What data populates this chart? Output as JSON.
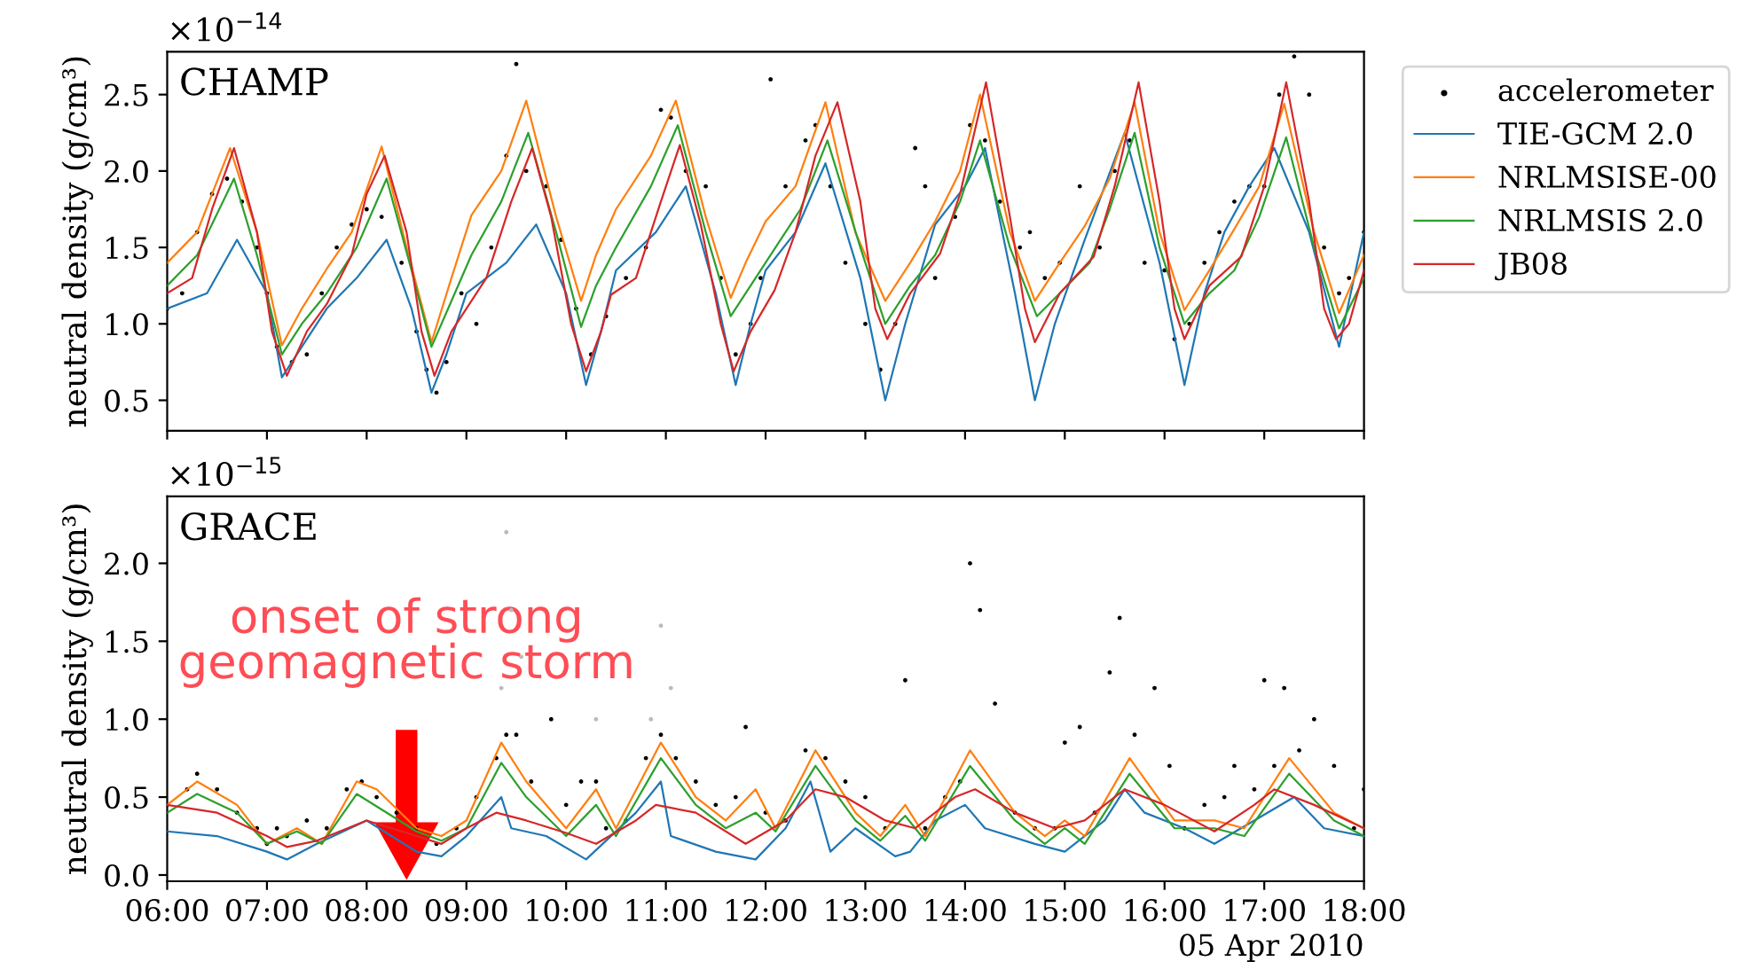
{
  "chart_data": [
    {
      "type": "line",
      "ylabel": "neutral density (g/cm³)",
      "annotations": [
        "CHAMP",
        "×10$^{−14}$"
      ],
      "xlim": [
        6,
        18
      ],
      "xticks": [
        {
          "value": 6,
          "label": null
        },
        {
          "value": 7,
          "label": null
        },
        {
          "value": 8,
          "label": null
        },
        {
          "value": 9,
          "label": null
        },
        {
          "value": 10,
          "label": null
        },
        {
          "value": 11,
          "label": null
        },
        {
          "value": 12,
          "label": null
        },
        {
          "value": 13,
          "label": null
        },
        {
          "value": 14,
          "label": null
        },
        {
          "value": 15,
          "label": null
        },
        {
          "value": 16,
          "label": null
        },
        {
          "value": 17,
          "label": null
        },
        {
          "value": 18,
          "label": null
        }
      ],
      "ylim": [
        0.3,
        2.78
      ],
      "yticks": [
        {
          "value": 0.5,
          "label": "0.5"
        },
        {
          "value": 1.0,
          "label": "1.0"
        },
        {
          "value": 1.5,
          "label": "1.5"
        },
        {
          "value": 2.0,
          "label": "2.0"
        },
        {
          "value": 2.5,
          "label": "2.5"
        }
      ],
      "tick_labels": "y",
      "grid": false,
      "legend": "right",
      "marker": "none",
      "line_style": "solid",
      "series": [
        {
          "name": "accelerometer",
          "type": "scatter",
          "marker": "circle",
          "color": "#000000",
          "x": [
            6.0,
            6.15,
            6.3,
            6.45,
            6.6,
            6.75,
            6.9,
            7.0,
            7.1,
            7.25,
            7.4,
            7.55,
            7.7,
            7.85,
            8.0,
            8.15,
            8.35,
            8.5,
            8.6,
            8.7,
            8.8,
            8.95,
            9.1,
            9.25,
            9.4,
            9.5,
            9.6,
            9.8,
            9.95,
            10.1,
            10.25,
            10.4,
            10.6,
            10.8,
            10.95,
            11.05,
            11.2,
            11.4,
            11.55,
            11.7,
            11.85,
            11.95,
            12.05,
            12.2,
            12.4,
            12.5,
            12.65,
            12.8,
            13.0,
            13.15,
            13.3,
            13.5,
            13.6,
            13.7,
            13.9,
            14.05,
            14.2,
            14.35,
            14.55,
            14.65,
            14.8,
            14.95,
            15.15,
            15.35,
            15.5,
            15.65,
            15.8,
            16.0,
            16.1,
            16.25,
            16.4,
            16.55,
            16.7,
            16.85,
            17.0,
            17.15,
            17.3,
            17.45,
            17.6,
            17.75,
            17.85,
            18.0
          ],
          "values": [
            1.1,
            1.2,
            1.6,
            1.85,
            1.95,
            1.8,
            1.5,
            1.2,
            0.85,
            0.75,
            0.8,
            1.2,
            1.5,
            1.65,
            1.75,
            1.7,
            1.4,
            0.95,
            0.7,
            0.55,
            0.75,
            1.2,
            1.0,
            1.5,
            2.1,
            2.7,
            2.0,
            1.9,
            1.55,
            1.1,
            0.8,
            1.05,
            1.3,
            1.5,
            2.4,
            2.35,
            2.0,
            1.9,
            1.3,
            0.8,
            1.0,
            1.3,
            2.6,
            1.9,
            2.2,
            2.3,
            1.9,
            1.4,
            1.0,
            0.7,
            1.0,
            2.15,
            1.9,
            1.3,
            1.7,
            2.3,
            2.2,
            1.8,
            1.5,
            1.6,
            1.3,
            1.4,
            1.9,
            1.5,
            2.0,
            2.2,
            1.4,
            1.35,
            0.9,
            1.0,
            1.4,
            1.6,
            1.8,
            1.9,
            1.9,
            2.5,
            2.75,
            2.5,
            1.5,
            1.2,
            1.3,
            1.6
          ]
        },
        {
          "name": "TIE-GCM 2.0",
          "type": "line",
          "color": "#1f77b4",
          "x": [
            6.0,
            6.4,
            6.7,
            7.0,
            7.15,
            7.35,
            7.6,
            7.9,
            8.2,
            8.45,
            8.65,
            8.8,
            9.0,
            9.4,
            9.7,
            10.0,
            10.2,
            10.35,
            10.5,
            10.9,
            11.2,
            11.5,
            11.7,
            11.85,
            12.0,
            12.3,
            12.6,
            12.95,
            13.2,
            13.4,
            13.7,
            14.0,
            14.2,
            14.5,
            14.7,
            14.9,
            15.2,
            15.4,
            15.6,
            15.95,
            16.2,
            16.4,
            16.6,
            16.85,
            17.1,
            17.45,
            17.75,
            18.0
          ],
          "values": [
            1.1,
            1.2,
            1.55,
            1.2,
            0.65,
            0.85,
            1.1,
            1.3,
            1.55,
            1.1,
            0.55,
            0.8,
            1.2,
            1.4,
            1.65,
            1.2,
            0.6,
            0.95,
            1.35,
            1.6,
            1.9,
            1.2,
            0.6,
            1.0,
            1.35,
            1.6,
            2.05,
            1.3,
            0.5,
            1.0,
            1.65,
            1.9,
            2.15,
            1.2,
            0.5,
            1.0,
            1.55,
            1.9,
            2.25,
            1.4,
            0.6,
            1.2,
            1.6,
            1.9,
            2.15,
            1.6,
            0.85,
            1.6
          ]
        },
        {
          "name": "NRLMSISE-00",
          "type": "line",
          "color": "#ff7f0e",
          "x": [
            6.0,
            6.3,
            6.63,
            6.9,
            7.15,
            7.35,
            7.6,
            7.85,
            8.15,
            8.4,
            8.65,
            8.85,
            9.05,
            9.35,
            9.6,
            9.9,
            10.15,
            10.3,
            10.5,
            10.85,
            11.1,
            11.4,
            11.65,
            11.8,
            12.0,
            12.3,
            12.6,
            12.9,
            13.2,
            13.45,
            13.7,
            13.95,
            14.15,
            14.45,
            14.7,
            14.95,
            15.2,
            15.45,
            15.7,
            15.95,
            16.2,
            16.45,
            16.7,
            16.95,
            17.2,
            17.5,
            17.75,
            18.0
          ],
          "values": [
            1.4,
            1.6,
            2.15,
            1.6,
            0.86,
            1.1,
            1.36,
            1.6,
            2.16,
            1.5,
            0.88,
            1.3,
            1.71,
            2.0,
            2.46,
            1.7,
            1.15,
            1.45,
            1.75,
            2.1,
            2.46,
            1.7,
            1.17,
            1.4,
            1.67,
            1.9,
            2.45,
            1.6,
            1.15,
            1.4,
            1.67,
            2.0,
            2.5,
            1.6,
            1.15,
            1.4,
            1.64,
            1.95,
            2.45,
            1.6,
            1.09,
            1.35,
            1.62,
            1.9,
            2.44,
            1.6,
            1.07,
            1.45
          ]
        },
        {
          "name": "NRLMSIS 2.0",
          "type": "line",
          "color": "#2ca02c",
          "x": [
            6.0,
            6.3,
            6.67,
            6.9,
            7.15,
            7.35,
            7.6,
            7.9,
            8.2,
            8.45,
            8.65,
            8.85,
            9.05,
            9.35,
            9.62,
            9.9,
            10.15,
            10.3,
            10.5,
            10.85,
            11.12,
            11.4,
            11.65,
            11.85,
            12.05,
            12.35,
            12.62,
            12.95,
            13.2,
            13.45,
            13.7,
            13.95,
            14.15,
            14.45,
            14.72,
            14.95,
            15.25,
            15.45,
            15.7,
            15.95,
            16.2,
            16.45,
            16.7,
            16.95,
            17.22,
            17.5,
            17.75,
            18.0
          ],
          "values": [
            1.25,
            1.45,
            1.95,
            1.45,
            0.8,
            1.0,
            1.2,
            1.5,
            1.95,
            1.35,
            0.85,
            1.15,
            1.45,
            1.8,
            2.25,
            1.6,
            0.98,
            1.25,
            1.5,
            1.9,
            2.3,
            1.6,
            1.05,
            1.25,
            1.45,
            1.75,
            2.2,
            1.5,
            1.0,
            1.25,
            1.45,
            1.8,
            2.2,
            1.5,
            1.05,
            1.2,
            1.4,
            1.75,
            2.25,
            1.5,
            1.0,
            1.2,
            1.35,
            1.7,
            2.22,
            1.5,
            0.97,
            1.3
          ]
        },
        {
          "name": "JB08",
          "type": "line",
          "color": "#d62728",
          "x": [
            6.0,
            6.25,
            6.45,
            6.67,
            6.9,
            7.05,
            7.2,
            7.4,
            7.6,
            7.85,
            8.0,
            8.18,
            8.4,
            8.55,
            8.68,
            8.85,
            9.0,
            9.2,
            9.45,
            9.66,
            9.85,
            10.05,
            10.2,
            10.35,
            10.45,
            10.7,
            10.95,
            11.14,
            11.35,
            11.55,
            11.68,
            11.85,
            12.09,
            12.3,
            12.5,
            12.72,
            12.95,
            13.1,
            13.22,
            13.45,
            13.75,
            13.95,
            14.21,
            14.45,
            14.6,
            14.7,
            14.95,
            15.29,
            15.5,
            15.74,
            15.95,
            16.1,
            16.2,
            16.45,
            16.77,
            17.0,
            17.22,
            17.45,
            17.6,
            17.72,
            17.85,
            18.0
          ],
          "values": [
            1.2,
            1.3,
            1.75,
            2.15,
            1.6,
            0.95,
            0.66,
            0.95,
            1.13,
            1.45,
            1.85,
            2.1,
            1.6,
            0.95,
            0.66,
            0.95,
            1.1,
            1.3,
            1.8,
            2.15,
            1.7,
            1.0,
            0.69,
            0.95,
            1.19,
            1.3,
            1.8,
            2.17,
            1.65,
            1.0,
            0.69,
            0.95,
            1.22,
            1.6,
            2.1,
            2.45,
            1.8,
            1.1,
            0.9,
            1.2,
            1.46,
            1.85,
            2.58,
            1.7,
            1.1,
            0.88,
            1.2,
            1.44,
            1.9,
            2.58,
            1.8,
            1.1,
            0.9,
            1.25,
            1.44,
            1.9,
            2.58,
            1.8,
            1.1,
            0.9,
            1.0,
            1.35
          ]
        }
      ]
    },
    {
      "type": "line",
      "ylabel": "neutral density (g/cm³)",
      "annotations": [
        "GRACE",
        "×10$^{−15}$",
        "onset of strong\ngeomagnetic storm",
        "05 Apr 2010"
      ],
      "xlim": [
        6,
        18
      ],
      "xticks": [
        {
          "value": 6,
          "label": "06:00"
        },
        {
          "value": 7,
          "label": "07:00"
        },
        {
          "value": 8,
          "label": "08:00"
        },
        {
          "value": 9,
          "label": "09:00"
        },
        {
          "value": 10,
          "label": "10:00"
        },
        {
          "value": 11,
          "label": "11:00"
        },
        {
          "value": 12,
          "label": "12:00"
        },
        {
          "value": 13,
          "label": "13:00"
        },
        {
          "value": 14,
          "label": "14:00"
        },
        {
          "value": 15,
          "label": "15:00"
        },
        {
          "value": 16,
          "label": "16:00"
        },
        {
          "value": 17,
          "label": "17:00"
        },
        {
          "value": 18,
          "label": "18:00"
        }
      ],
      "ylim": [
        -0.04,
        2.43
      ],
      "yticks": [
        {
          "value": 0.0,
          "label": "0.0"
        },
        {
          "value": 0.5,
          "label": "0.5"
        },
        {
          "value": 1.0,
          "label": "1.0"
        },
        {
          "value": 1.5,
          "label": "1.5"
        },
        {
          "value": 2.0,
          "label": "2.0"
        }
      ],
      "grid": false,
      "legend": false,
      "marker": "none",
      "line_style": "solid",
      "series": [
        {
          "type": "scatter",
          "marker": "circle",
          "color": "#bbbbbb",
          "x": [
            9.35,
            9.4,
            9.45,
            9.55,
            10.3,
            10.85,
            10.95,
            11.05
          ],
          "values": [
            1.2,
            2.2,
            1.7,
            1.4,
            1.0,
            1.0,
            1.6,
            1.2
          ]
        },
        {
          "type": "scatter",
          "marker": "circle",
          "color": "#000000",
          "x": [
            6.0,
            6.2,
            6.3,
            6.5,
            6.7,
            6.9,
            7.0,
            7.1,
            7.2,
            7.4,
            7.6,
            7.8,
            7.95,
            8.1,
            8.3,
            8.5,
            8.7,
            8.9,
            9.1,
            9.3,
            9.4,
            9.5,
            9.65,
            9.85,
            10.0,
            10.15,
            10.3,
            10.4,
            10.6,
            10.8,
            10.95,
            11.1,
            11.3,
            11.5,
            11.7,
            11.8,
            12.0,
            12.2,
            12.4,
            12.6,
            12.8,
            13.0,
            13.2,
            13.4,
            13.6,
            13.8,
            13.95,
            14.05,
            14.15,
            14.3,
            14.5,
            14.7,
            14.9,
            15.0,
            15.15,
            15.3,
            15.45,
            15.55,
            15.7,
            15.9,
            16.05,
            16.2,
            16.4,
            16.6,
            16.7,
            16.9,
            17.0,
            17.1,
            17.2,
            17.35,
            17.5,
            17.7,
            17.9,
            18.0
          ],
          "values": [
            0.45,
            0.55,
            0.65,
            0.55,
            0.4,
            0.3,
            0.2,
            0.3,
            0.25,
            0.35,
            0.3,
            0.55,
            0.6,
            0.5,
            0.4,
            0.3,
            0.2,
            0.3,
            0.5,
            0.75,
            0.9,
            0.9,
            0.6,
            1.0,
            0.45,
            0.6,
            0.6,
            0.3,
            0.35,
            0.75,
            0.9,
            0.75,
            0.6,
            0.45,
            0.5,
            0.95,
            0.4,
            0.35,
            0.8,
            0.75,
            0.6,
            0.5,
            0.3,
            1.25,
            0.3,
            0.5,
            0.6,
            2.0,
            1.7,
            1.1,
            0.4,
            0.3,
            0.3,
            0.85,
            0.95,
            0.4,
            1.3,
            1.65,
            0.9,
            1.2,
            0.7,
            0.3,
            0.45,
            0.5,
            0.7,
            0.55,
            1.25,
            0.7,
            1.2,
            0.8,
            1.0,
            0.7,
            0.3,
            0.55
          ]
        },
        {
          "type": "line",
          "color": "#1f77b4",
          "x": [
            6.0,
            6.5,
            7.0,
            7.2,
            7.5,
            8.0,
            8.5,
            8.75,
            9.0,
            9.35,
            9.45,
            9.8,
            10.2,
            10.7,
            10.95,
            11.05,
            11.5,
            11.9,
            12.2,
            12.45,
            12.65,
            12.9,
            13.3,
            13.45,
            13.7,
            14.0,
            14.2,
            14.7,
            15.0,
            15.4,
            15.6,
            15.8,
            16.2,
            16.5,
            16.9,
            17.3,
            17.6,
            18.0
          ],
          "values": [
            0.28,
            0.25,
            0.15,
            0.1,
            0.2,
            0.35,
            0.15,
            0.12,
            0.25,
            0.5,
            0.3,
            0.25,
            0.1,
            0.4,
            0.6,
            0.25,
            0.15,
            0.1,
            0.3,
            0.6,
            0.15,
            0.3,
            0.12,
            0.15,
            0.35,
            0.45,
            0.3,
            0.2,
            0.15,
            0.35,
            0.55,
            0.4,
            0.3,
            0.2,
            0.35,
            0.5,
            0.3,
            0.25
          ]
        },
        {
          "type": "line",
          "color": "#ff7f0e",
          "x": [
            6.0,
            6.3,
            6.7,
            7.0,
            7.3,
            7.55,
            7.9,
            8.1,
            8.5,
            8.75,
            9.0,
            9.35,
            9.6,
            10.0,
            10.3,
            10.5,
            10.95,
            11.3,
            11.6,
            11.9,
            12.1,
            12.5,
            12.9,
            13.15,
            13.4,
            13.6,
            14.05,
            14.5,
            14.8,
            15.0,
            15.2,
            15.65,
            16.1,
            16.5,
            16.8,
            17.25,
            17.7,
            18.0
          ],
          "values": [
            0.45,
            0.6,
            0.45,
            0.2,
            0.3,
            0.2,
            0.6,
            0.55,
            0.3,
            0.25,
            0.35,
            0.85,
            0.6,
            0.3,
            0.55,
            0.3,
            0.85,
            0.5,
            0.35,
            0.55,
            0.3,
            0.8,
            0.4,
            0.25,
            0.45,
            0.25,
            0.8,
            0.4,
            0.25,
            0.35,
            0.25,
            0.75,
            0.35,
            0.35,
            0.3,
            0.75,
            0.4,
            0.3
          ]
        },
        {
          "type": "line",
          "color": "#2ca02c",
          "x": [
            6.0,
            6.3,
            6.7,
            7.0,
            7.3,
            7.55,
            7.9,
            8.5,
            8.75,
            9.0,
            9.35,
            9.6,
            10.0,
            10.3,
            10.5,
            10.95,
            11.3,
            11.6,
            11.9,
            12.1,
            12.5,
            12.9,
            13.15,
            13.4,
            13.6,
            14.05,
            14.5,
            14.8,
            15.0,
            15.2,
            15.65,
            16.1,
            16.5,
            16.8,
            17.25,
            17.7,
            18.0
          ],
          "values": [
            0.4,
            0.52,
            0.4,
            0.2,
            0.28,
            0.2,
            0.52,
            0.28,
            0.22,
            0.3,
            0.72,
            0.5,
            0.25,
            0.45,
            0.25,
            0.75,
            0.45,
            0.3,
            0.4,
            0.28,
            0.7,
            0.35,
            0.22,
            0.38,
            0.22,
            0.7,
            0.35,
            0.2,
            0.3,
            0.2,
            0.65,
            0.3,
            0.3,
            0.25,
            0.65,
            0.35,
            0.25
          ]
        },
        {
          "type": "line",
          "color": "#d62728",
          "x": [
            6.0,
            6.5,
            7.0,
            7.2,
            7.5,
            8.0,
            8.5,
            8.75,
            9.0,
            9.3,
            9.6,
            10.0,
            10.3,
            10.7,
            10.9,
            11.3,
            11.8,
            12.2,
            12.5,
            12.8,
            13.2,
            13.5,
            13.9,
            14.1,
            14.5,
            14.9,
            15.2,
            15.6,
            16.0,
            16.5,
            16.9,
            17.1,
            17.5,
            18.0
          ],
          "values": [
            0.45,
            0.4,
            0.25,
            0.18,
            0.22,
            0.35,
            0.25,
            0.2,
            0.3,
            0.4,
            0.35,
            0.27,
            0.2,
            0.35,
            0.45,
            0.4,
            0.2,
            0.35,
            0.55,
            0.5,
            0.35,
            0.3,
            0.5,
            0.55,
            0.4,
            0.3,
            0.35,
            0.55,
            0.45,
            0.28,
            0.45,
            0.55,
            0.45,
            0.3
          ]
        }
      ]
    }
  ]
}
